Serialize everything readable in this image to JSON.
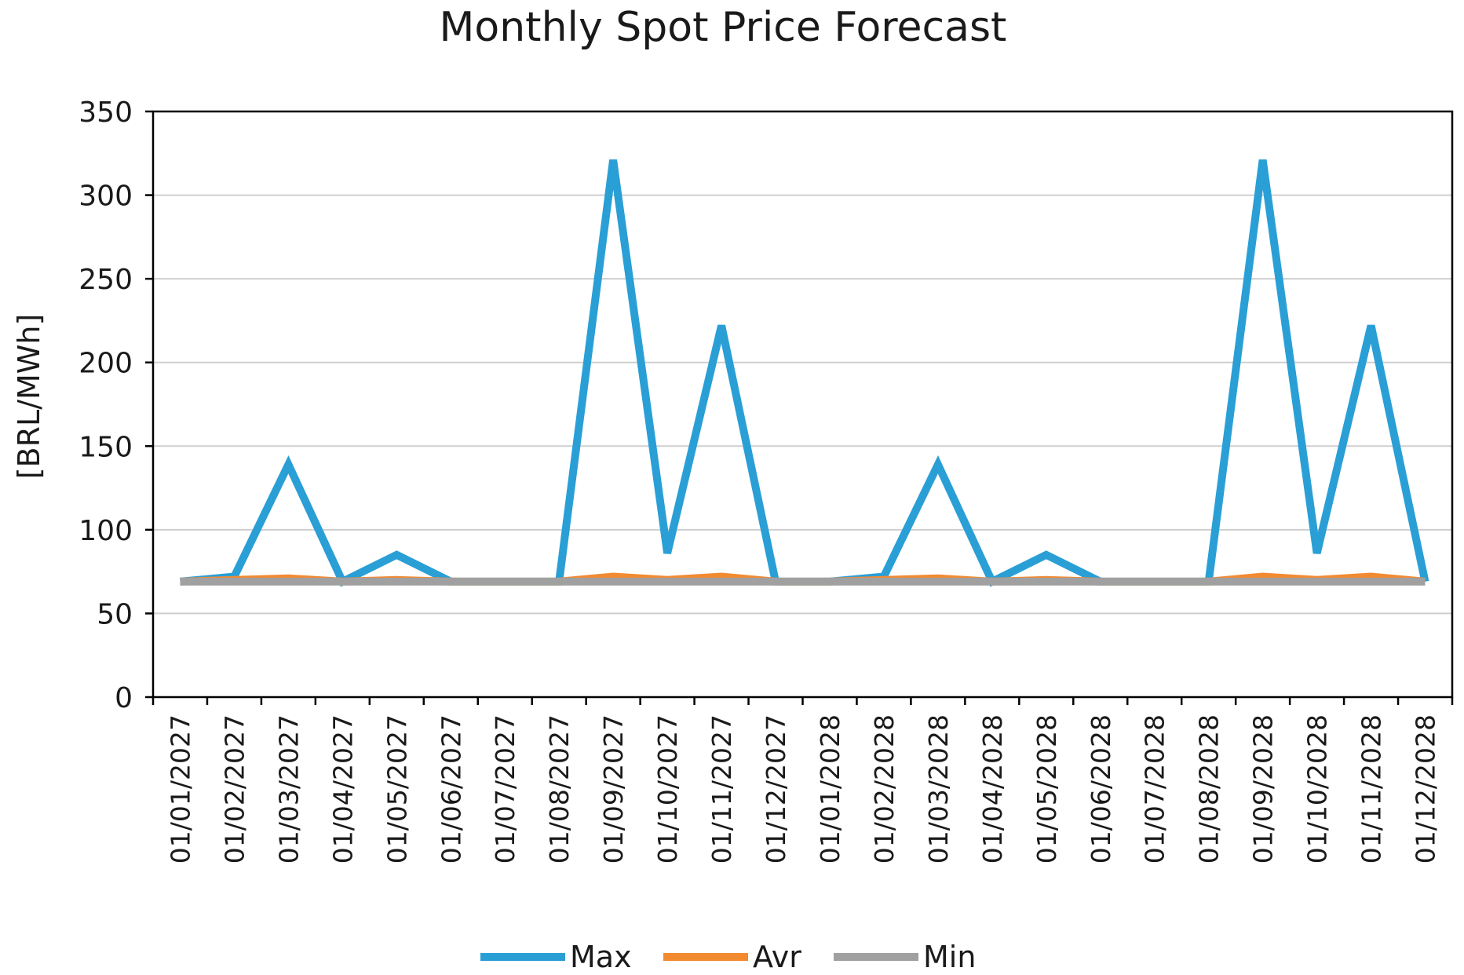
{
  "chart_data": {
    "type": "line",
    "title": "Monthly Spot Price Forecast",
    "ylabel": "[BRL/MWh]",
    "xlabel": "",
    "ylim": [
      0,
      350
    ],
    "yticks": [
      0,
      50,
      100,
      150,
      200,
      250,
      300,
      350
    ],
    "grid": true,
    "legend": "bottom",
    "categories": [
      "01/01/2027",
      "01/02/2027",
      "01/03/2027",
      "01/04/2027",
      "01/05/2027",
      "01/06/2027",
      "01/07/2027",
      "01/08/2027",
      "01/09/2027",
      "01/10/2027",
      "01/11/2027",
      "01/12/2027",
      "01/01/2028",
      "01/02/2028",
      "01/03/2028",
      "01/04/2028",
      "01/05/2028",
      "01/06/2028",
      "01/07/2028",
      "01/08/2028",
      "01/09/2028",
      "01/10/2028",
      "01/11/2028",
      "01/12/2028"
    ],
    "series": [
      {
        "name": "Max",
        "color": "#2a9fd6",
        "values": [
          69,
          72,
          139,
          69,
          85,
          69,
          69,
          69,
          321,
          86,
          222,
          69,
          69,
          72,
          139,
          69,
          85,
          69,
          69,
          69,
          321,
          86,
          222,
          69
        ]
      },
      {
        "name": "Avr",
        "color": "#f28a30",
        "values": [
          69,
          70,
          71,
          69,
          70,
          69,
          69,
          69,
          72,
          70,
          72,
          69,
          69,
          70,
          71,
          69,
          70,
          69,
          69,
          69,
          72,
          70,
          72,
          69
        ]
      },
      {
        "name": "Min",
        "color": "#a0a0a0",
        "values": [
          69,
          69,
          69,
          69,
          69,
          69,
          69,
          69,
          69,
          69,
          69,
          69,
          69,
          69,
          69,
          69,
          69,
          69,
          69,
          69,
          69,
          69,
          69,
          69
        ]
      }
    ]
  }
}
